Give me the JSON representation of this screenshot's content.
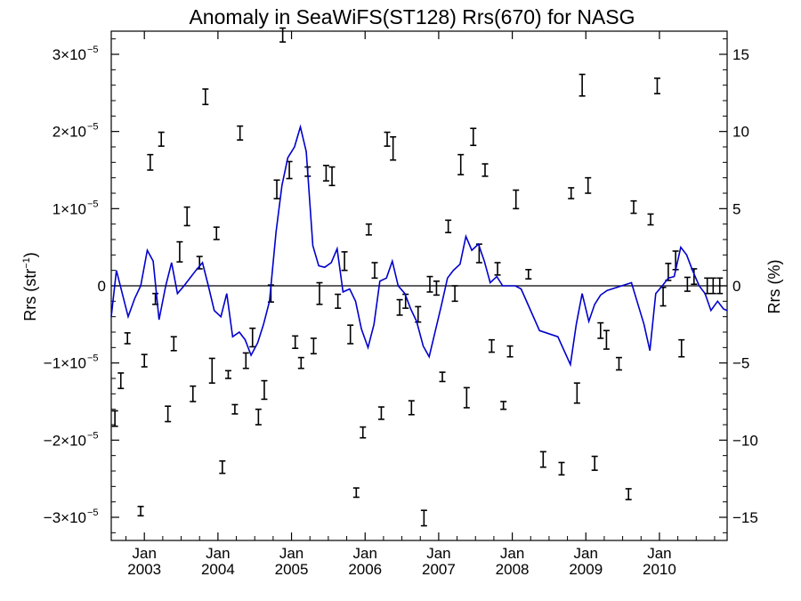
{
  "chart_data": {
    "type": "line",
    "title": "Anomaly in SeaWiFS(ST128) Rrs(670) for NASG",
    "ylabel_left": "Rrs (str",
    "ylabel_left_sup": "−1",
    "ylabel_left_close": ")",
    "ylabel_right": "Rrs (%)",
    "xlim": [
      2002.55,
      2010.92
    ],
    "ylim_left": [
      -3.3,
      3.3
    ],
    "ylim_right": [
      -16.5,
      16.5
    ],
    "y_left_exponent": "−5",
    "y_left_ticks": [
      {
        "value": 3,
        "label": "3×10"
      },
      {
        "value": 2,
        "label": "2×10"
      },
      {
        "value": 1,
        "label": "1×10"
      },
      {
        "value": 0,
        "label": "0"
      },
      {
        "value": -1,
        "label": "−1×10"
      },
      {
        "value": -2,
        "label": "−2×10"
      },
      {
        "value": -3,
        "label": "−3×10"
      }
    ],
    "y_right_ticks": [
      {
        "value": 15,
        "label": "15"
      },
      {
        "value": 10,
        "label": "10"
      },
      {
        "value": 5,
        "label": "5"
      },
      {
        "value": 0,
        "label": "0"
      },
      {
        "value": -5,
        "label": "−5"
      },
      {
        "value": -10,
        "label": "−10"
      },
      {
        "value": -15,
        "label": "−15"
      }
    ],
    "x_ticks": [
      {
        "value": 2003.0,
        "month": "Jan",
        "year": "2003"
      },
      {
        "value": 2004.0,
        "month": "Jan",
        "year": "2004"
      },
      {
        "value": 2005.0,
        "month": "Jan",
        "year": "2005"
      },
      {
        "value": 2006.0,
        "month": "Jan",
        "year": "2006"
      },
      {
        "value": 2007.0,
        "month": "Jan",
        "year": "2007"
      },
      {
        "value": 2008.0,
        "month": "Jan",
        "year": "2008"
      },
      {
        "value": 2009.0,
        "month": "Jan",
        "year": "2009"
      },
      {
        "value": 2010.0,
        "month": "Jan",
        "year": "2010"
      }
    ],
    "series": [
      {
        "style": "line",
        "color": "#0000cc",
        "axis": "right",
        "x": [
          2002.55,
          2002.62,
          2002.7,
          2002.78,
          2002.87,
          2002.95,
          2003.04,
          2003.12,
          2003.2,
          2003.29,
          2003.37,
          2003.45,
          2003.54,
          2003.62,
          2003.7,
          2003.79,
          2003.87,
          2003.95,
          2004.04,
          2004.12,
          2004.2,
          2004.29,
          2004.37,
          2004.45,
          2004.54,
          2004.62,
          2004.7,
          2004.79,
          2004.87,
          2004.95,
          2005.04,
          2005.12,
          2005.2,
          2005.29,
          2005.37,
          2005.45,
          2005.54,
          2005.62,
          2005.7,
          2005.79,
          2005.87,
          2005.95,
          2006.04,
          2006.12,
          2006.2,
          2006.29,
          2006.37,
          2006.45,
          2006.54,
          2006.62,
          2006.7,
          2006.79,
          2006.87,
          2006.95,
          2007.04,
          2007.12,
          2007.2,
          2007.29,
          2007.37,
          2007.45,
          2007.54,
          2007.62,
          2007.7,
          2007.79,
          2007.87,
          2007.95,
          2008.04,
          2008.12,
          2008.37,
          2008.62,
          2008.79,
          2008.87,
          2008.95,
          2009.04,
          2009.12,
          2009.2,
          2009.29,
          2009.62,
          2009.79,
          2009.87,
          2009.95,
          2010.04,
          2010.12,
          2010.2,
          2010.29,
          2010.37,
          2010.45,
          2010.54,
          2010.62,
          2010.7,
          2010.79,
          2010.87,
          2010.92
        ],
        "values": [
          -2.0,
          1.0,
          -0.5,
          -2.0,
          -0.8,
          0.0,
          2.3,
          1.6,
          -2.2,
          0.0,
          1.5,
          -0.5,
          0.0,
          0.5,
          1.0,
          1.5,
          0.0,
          -1.6,
          -2.0,
          -0.5,
          -3.3,
          -3.0,
          -3.5,
          -4.5,
          -3.7,
          -2.5,
          -1.0,
          3.5,
          6.5,
          8.3,
          9.0,
          10.3,
          8.7,
          2.6,
          1.3,
          1.2,
          1.5,
          2.4,
          -0.4,
          -0.2,
          -1.0,
          -2.8,
          -4.0,
          -2.5,
          0.3,
          0.5,
          1.6,
          0.0,
          -0.5,
          -1.5,
          -2.3,
          -3.9,
          -4.6,
          -3.0,
          -1.2,
          0.5,
          1.0,
          1.4,
          3.2,
          2.3,
          2.7,
          1.6,
          0.2,
          0.6,
          0.0,
          0.0,
          0.0,
          -0.2,
          -2.9,
          -3.3,
          -5.1,
          -2.5,
          -0.5,
          -2.3,
          -1.2,
          -0.6,
          -0.3,
          0.2,
          -2.5,
          -4.2,
          -0.5,
          0.0,
          0.5,
          0.6,
          2.5,
          2.0,
          1.0,
          0.0,
          -0.5,
          -1.6,
          -1.0,
          -1.5,
          -1.6
        ]
      },
      {
        "style": "errorbar",
        "color": "#000000",
        "axis": "left",
        "x": [
          2002.6,
          2002.68,
          2002.77,
          2002.95,
          2003.0,
          2003.08,
          2003.15,
          2003.23,
          2003.32,
          2003.4,
          2003.48,
          2003.58,
          2003.66,
          2003.75,
          2003.83,
          2003.92,
          2003.98,
          2004.06,
          2004.14,
          2004.23,
          2004.3,
          2004.38,
          2004.47,
          2004.55,
          2004.63,
          2004.72,
          2004.8,
          2004.88,
          2004.97,
          2005.05,
          2005.13,
          2005.22,
          2005.3,
          2005.38,
          2005.47,
          2005.55,
          2005.63,
          2005.72,
          2005.8,
          2005.88,
          2005.97,
          2006.05,
          2006.13,
          2006.22,
          2006.3,
          2006.38,
          2006.47,
          2006.55,
          2006.63,
          2006.72,
          2006.8,
          2006.88,
          2006.97,
          2007.05,
          2007.13,
          2007.22,
          2007.3,
          2007.38,
          2007.47,
          2007.55,
          2007.63,
          2007.72,
          2007.8,
          2007.88,
          2007.97,
          2008.05,
          2008.22,
          2008.42,
          2008.67,
          2008.8,
          2008.88,
          2008.95,
          2009.03,
          2009.12,
          2009.2,
          2009.28,
          2009.45,
          2009.58,
          2009.65,
          2009.88,
          2009.97,
          2010.05,
          2010.12,
          2010.22,
          2010.3,
          2010.38,
          2010.47,
          2010.65,
          2010.73,
          2010.82
        ],
        "values": [
          -1.72,
          -1.23,
          -0.68,
          -2.92,
          -0.97,
          1.6,
          -0.17,
          1.9,
          -1.66,
          -0.75,
          0.44,
          0.9,
          -1.4,
          0.3,
          2.45,
          -1.1,
          0.68,
          -2.35,
          -1.15,
          -1.6,
          1.98,
          -0.97,
          -0.67,
          -1.7,
          -1.35,
          -0.1,
          1.25,
          3.25,
          1.5,
          -0.73,
          -1.0,
          1.48,
          -0.78,
          -0.1,
          1.46,
          1.42,
          -0.2,
          0.32,
          -0.63,
          -2.68,
          -1.9,
          0.73,
          0.2,
          -1.65,
          1.9,
          1.78,
          -0.28,
          -0.2,
          -1.58,
          -0.37,
          -3.01,
          0.02,
          -0.03,
          -1.18,
          0.77,
          -0.1,
          1.57,
          -1.45,
          1.93,
          0.42,
          1.5,
          -0.78,
          0.22,
          -1.55,
          -0.85,
          1.12,
          0.15,
          -2.25,
          -2.37,
          1.2,
          -1.39,
          2.6,
          1.3,
          -2.3,
          -0.58,
          -0.7,
          -1.01,
          -2.7,
          1.02,
          0.86,
          2.59,
          -0.14,
          0.18,
          0.33,
          -0.81,
          0.02,
          0.12,
          0.0,
          0.0,
          0.0
        ],
        "err": [
          0.1,
          0.1,
          0.07,
          0.06,
          0.08,
          0.1,
          0.07,
          0.09,
          0.1,
          0.09,
          0.13,
          0.12,
          0.1,
          0.08,
          0.1,
          0.16,
          0.08,
          0.08,
          0.05,
          0.06,
          0.09,
          0.1,
          0.12,
          0.1,
          0.12,
          0.11,
          0.12,
          0.09,
          0.11,
          0.08,
          0.07,
          0.06,
          0.1,
          0.14,
          0.1,
          0.12,
          0.09,
          0.12,
          0.12,
          0.06,
          0.07,
          0.07,
          0.1,
          0.08,
          0.09,
          0.15,
          0.1,
          0.09,
          0.09,
          0.1,
          0.1,
          0.1,
          0.09,
          0.06,
          0.08,
          0.1,
          0.13,
          0.13,
          0.11,
          0.12,
          0.08,
          0.08,
          0.08,
          0.05,
          0.07,
          0.12,
          0.06,
          0.1,
          0.08,
          0.07,
          0.13,
          0.14,
          0.1,
          0.09,
          0.1,
          0.12,
          0.08,
          0.07,
          0.08,
          0.07,
          0.1,
          0.12,
          0.11,
          0.12,
          0.11,
          0.09,
          0.1,
          0.1,
          0.1,
          0.1
        ]
      }
    ],
    "reference_line": 0
  }
}
